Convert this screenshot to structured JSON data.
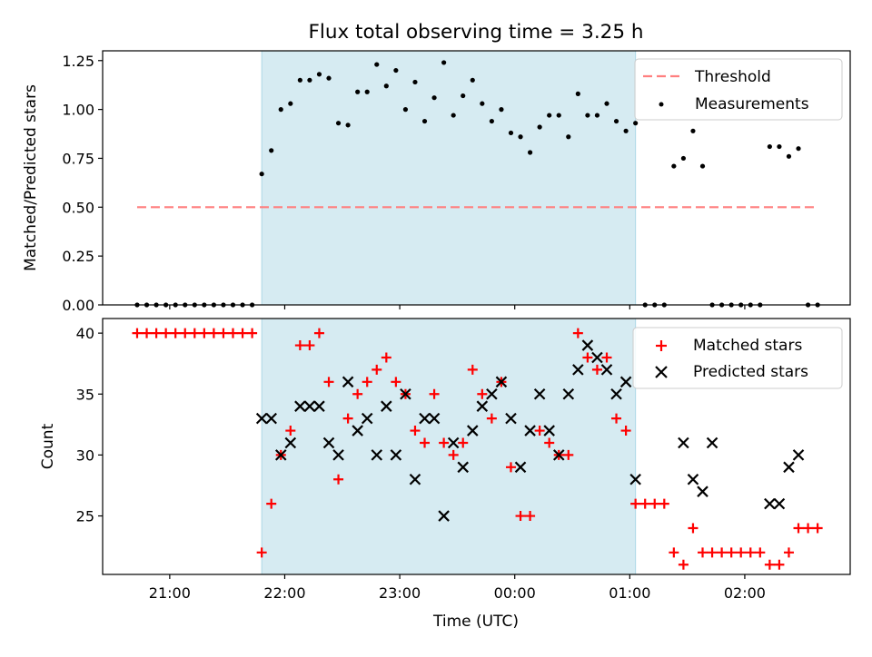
{
  "title": "Flux total observing time = 3.25 h",
  "chart_data": [
    {
      "type": "scatter",
      "ylabel": "Matched/Predicted stars",
      "ylim": [
        0,
        1.3
      ],
      "yticks": [
        "0.00",
        "0.25",
        "0.50",
        "0.75",
        "1.00",
        "1.25"
      ],
      "ytick_values": [
        0,
        0.25,
        0.5,
        0.75,
        1.0,
        1.25
      ],
      "grid": false,
      "legend_position": "top-right",
      "threshold": {
        "name": "Threshold",
        "value": 0.5,
        "x_start": "20:43",
        "x_end": "02:38",
        "color": "#ff7f7f"
      },
      "measurements": {
        "name": "Measurements",
        "color": "#000000",
        "x": [
          "20:43",
          "20:48",
          "20:53",
          "20:58",
          "21:03",
          "21:08",
          "21:13",
          "21:18",
          "21:23",
          "21:28",
          "21:33",
          "21:38",
          "21:43",
          "21:48",
          "21:53",
          "21:58",
          "22:03",
          "22:08",
          "22:13",
          "22:18",
          "22:23",
          "22:28",
          "22:33",
          "22:38",
          "22:43",
          "22:48",
          "22:53",
          "22:58",
          "23:03",
          "23:08",
          "23:13",
          "23:18",
          "23:23",
          "23:28",
          "23:33",
          "23:38",
          "23:43",
          "23:48",
          "23:53",
          "23:58",
          "00:03",
          "00:08",
          "00:13",
          "00:18",
          "00:23",
          "00:28",
          "00:33",
          "00:38",
          "00:43",
          "00:48",
          "00:53",
          "00:58",
          "01:03",
          "01:08",
          "01:13",
          "01:18",
          "01:23",
          "01:28",
          "01:33",
          "01:38",
          "01:43",
          "01:48",
          "01:53",
          "01:58",
          "02:03",
          "02:08",
          "02:13",
          "02:18",
          "02:23",
          "02:28",
          "02:33",
          "02:38"
        ],
        "y": [
          0,
          0,
          0,
          0,
          0,
          0,
          0,
          0,
          0,
          0,
          0,
          0,
          0,
          0.67,
          0.79,
          1.0,
          1.03,
          1.15,
          1.15,
          1.18,
          1.16,
          0.93,
          0.92,
          1.09,
          1.09,
          1.23,
          1.12,
          1.2,
          1.0,
          1.14,
          0.94,
          1.06,
          1.24,
          0.97,
          1.07,
          1.15,
          1.03,
          0.94,
          1.0,
          0.88,
          0.86,
          0.78,
          0.91,
          0.97,
          0.97,
          0.86,
          1.08,
          0.97,
          0.97,
          1.03,
          0.94,
          0.89,
          0.93,
          0,
          0,
          0,
          0.71,
          0.75,
          0.89,
          0.71,
          0,
          0,
          0,
          0,
          0,
          0,
          0.81,
          0.81,
          0.76,
          0.8,
          0,
          0
        ]
      }
    },
    {
      "type": "scatter",
      "xlabel": "Time (UTC)",
      "ylabel": "Count",
      "ylim": [
        20.2,
        41.2
      ],
      "yticks": [
        "25",
        "30",
        "35",
        "40"
      ],
      "ytick_values": [
        25,
        30,
        35,
        40
      ],
      "xticks": [
        "21:00",
        "22:00",
        "23:00",
        "00:00",
        "01:00",
        "02:00"
      ],
      "xtick_values": [
        "21:00",
        "22:00",
        "23:00",
        "00:00",
        "01:00",
        "02:00"
      ],
      "xlim": [
        "20:25",
        "02:55"
      ],
      "grid": false,
      "legend_position": "top-right",
      "series": [
        {
          "name": "Matched stars",
          "marker": "plus",
          "color": "#ff0000",
          "x": [
            "20:43",
            "20:48",
            "20:53",
            "20:58",
            "21:03",
            "21:08",
            "21:13",
            "21:18",
            "21:23",
            "21:28",
            "21:33",
            "21:38",
            "21:43",
            "21:48",
            "21:53",
            "21:58",
            "22:03",
            "22:08",
            "22:13",
            "22:18",
            "22:23",
            "22:28",
            "22:33",
            "22:38",
            "22:43",
            "22:48",
            "22:53",
            "22:58",
            "23:03",
            "23:08",
            "23:13",
            "23:18",
            "23:23",
            "23:28",
            "23:33",
            "23:38",
            "23:43",
            "23:48",
            "23:53",
            "23:58",
            "00:03",
            "00:08",
            "00:13",
            "00:18",
            "00:23",
            "00:28",
            "00:33",
            "00:38",
            "00:43",
            "00:48",
            "00:53",
            "00:58",
            "01:03",
            "01:08",
            "01:13",
            "01:18",
            "01:23",
            "01:28",
            "01:33",
            "01:38",
            "01:43",
            "01:48",
            "01:53",
            "01:58",
            "02:03",
            "02:08",
            "02:13",
            "02:18",
            "02:23",
            "02:28",
            "02:33",
            "02:38"
          ],
          "y": [
            40,
            40,
            40,
            40,
            40,
            40,
            40,
            40,
            40,
            40,
            40,
            40,
            40,
            22,
            26,
            30,
            32,
            39,
            39,
            40,
            36,
            28,
            33,
            35,
            36,
            37,
            38,
            36,
            35,
            32,
            31,
            35,
            31,
            30,
            31,
            37,
            35,
            33,
            36,
            29,
            25,
            25,
            32,
            31,
            30,
            30,
            40,
            38,
            37,
            38,
            33,
            32,
            26,
            26,
            26,
            26,
            22,
            21,
            24,
            22,
            22,
            22,
            22,
            22,
            22,
            22,
            21,
            21,
            22,
            24,
            24,
            24
          ]
        },
        {
          "name": "Predicted stars",
          "marker": "x",
          "color": "#000000",
          "x": [
            "21:48",
            "21:53",
            "21:58",
            "22:03",
            "22:08",
            "22:13",
            "22:18",
            "22:23",
            "22:28",
            "22:33",
            "22:38",
            "22:43",
            "22:48",
            "22:53",
            "22:58",
            "23:03",
            "23:08",
            "23:13",
            "23:18",
            "23:23",
            "23:28",
            "23:33",
            "23:38",
            "23:43",
            "23:48",
            "23:53",
            "23:58",
            "00:03",
            "00:08",
            "00:13",
            "00:18",
            "00:23",
            "00:28",
            "00:33",
            "00:38",
            "00:43",
            "00:48",
            "00:53",
            "00:58",
            "01:03",
            "01:28",
            "01:33",
            "01:38",
            "01:43",
            "02:13",
            "02:18",
            "02:23",
            "02:28"
          ],
          "y": [
            33,
            33,
            30,
            31,
            34,
            34,
            34,
            31,
            30,
            36,
            32,
            33,
            30,
            34,
            30,
            35,
            28,
            33,
            33,
            25,
            31,
            29,
            32,
            34,
            35,
            36,
            33,
            29,
            32,
            35,
            32,
            30,
            35,
            37,
            39,
            38,
            37,
            35,
            36,
            28,
            31,
            28,
            27,
            31,
            26,
            26,
            29,
            30
          ]
        }
      ]
    }
  ],
  "shaded_region": {
    "x_start": "21:48",
    "x_end": "01:03",
    "color": "#add8e6"
  },
  "colors": {
    "threshold": "#ff7f7f",
    "matched": "#ff0000",
    "predicted": "#000000",
    "axes": "#000000"
  }
}
